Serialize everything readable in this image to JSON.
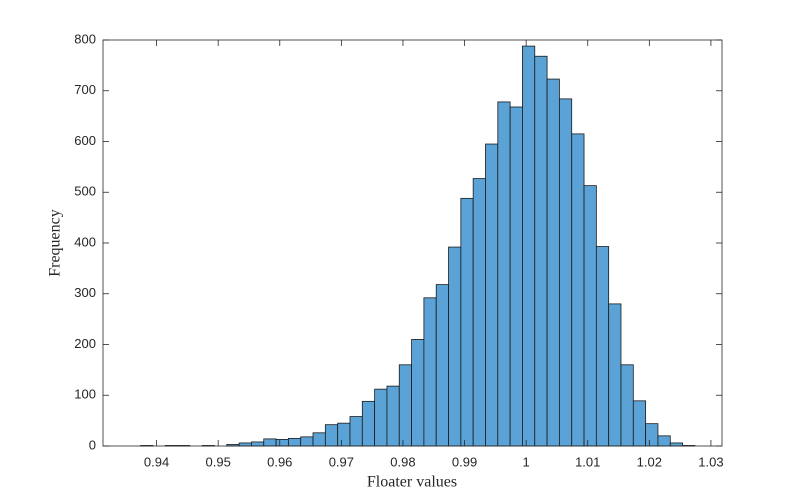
{
  "chart_data": {
    "type": "histogram",
    "xlabel": "Floater values",
    "ylabel": "Frequency",
    "bins": [
      0.9374,
      0.9394,
      0.9414,
      0.9434,
      0.9454,
      0.9474,
      0.9494,
      0.9514,
      0.9534,
      0.9554,
      0.9574,
      0.9594,
      0.9614,
      0.9634,
      0.9654,
      0.9674,
      0.9694,
      0.9714,
      0.9734,
      0.9754,
      0.9774,
      0.9794,
      0.9814,
      0.9834,
      0.9854,
      0.9874,
      0.9894,
      0.9914,
      0.9934,
      0.9954,
      0.9974,
      0.9994,
      1.0014,
      1.0034,
      1.0054,
      1.0074,
      1.0094,
      1.0114,
      1.0134,
      1.0154,
      1.0174,
      1.0194,
      1.0214,
      1.0234,
      1.0254,
      1.0274
    ],
    "values": [
      1,
      0,
      1,
      1,
      0,
      1,
      0,
      3,
      6,
      8,
      14,
      13,
      15,
      18,
      26,
      42,
      45,
      58,
      88,
      112,
      118,
      160,
      210,
      292,
      318,
      392,
      488,
      527,
      595,
      678,
      668,
      788,
      768,
      723,
      684,
      615,
      513,
      393,
      280,
      160,
      89,
      44,
      20,
      6,
      1
    ],
    "color": "#5ba3d6",
    "edgecolor": "#1a1a1a",
    "xlim": [
      0.9313,
      1.0318
    ],
    "ylim": [
      0,
      800
    ],
    "xticks": [
      0.94,
      0.95,
      0.96,
      0.97,
      0.98,
      0.99,
      1,
      1.01,
      1.02,
      1.03
    ],
    "yticks": [
      0,
      100,
      200,
      300,
      400,
      500,
      600,
      700,
      800
    ]
  }
}
